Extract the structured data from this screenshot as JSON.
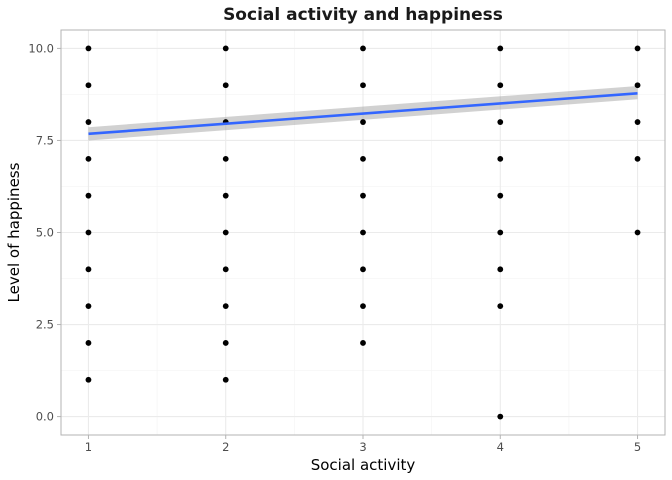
{
  "chart_data": {
    "type": "scatter",
    "title": "Social activity and happiness",
    "xlabel": "Social activity",
    "ylabel": "Level of happiness",
    "xlim": [
      0.8,
      5.2
    ],
    "ylim": [
      -0.5,
      10.5
    ],
    "x_ticks": [
      1,
      2,
      3,
      4,
      5
    ],
    "y_ticks": [
      0,
      2.5,
      5,
      7.5,
      10
    ],
    "y_tick_labels": [
      "0.0",
      "2.5",
      "5.0",
      "7.5",
      "10.0"
    ],
    "grid": true,
    "points": [
      {
        "x": 1,
        "y": 1
      },
      {
        "x": 1,
        "y": 2
      },
      {
        "x": 1,
        "y": 3
      },
      {
        "x": 1,
        "y": 4
      },
      {
        "x": 1,
        "y": 5
      },
      {
        "x": 1,
        "y": 6
      },
      {
        "x": 1,
        "y": 7
      },
      {
        "x": 1,
        "y": 8
      },
      {
        "x": 1,
        "y": 9
      },
      {
        "x": 1,
        "y": 10
      },
      {
        "x": 2,
        "y": 1
      },
      {
        "x": 2,
        "y": 2
      },
      {
        "x": 2,
        "y": 3
      },
      {
        "x": 2,
        "y": 4
      },
      {
        "x": 2,
        "y": 5
      },
      {
        "x": 2,
        "y": 6
      },
      {
        "x": 2,
        "y": 7
      },
      {
        "x": 2,
        "y": 8
      },
      {
        "x": 2,
        "y": 9
      },
      {
        "x": 2,
        "y": 10
      },
      {
        "x": 3,
        "y": 2
      },
      {
        "x": 3,
        "y": 3
      },
      {
        "x": 3,
        "y": 4
      },
      {
        "x": 3,
        "y": 5
      },
      {
        "x": 3,
        "y": 6
      },
      {
        "x": 3,
        "y": 7
      },
      {
        "x": 3,
        "y": 8
      },
      {
        "x": 3,
        "y": 9
      },
      {
        "x": 3,
        "y": 10
      },
      {
        "x": 4,
        "y": 0
      },
      {
        "x": 4,
        "y": 3
      },
      {
        "x": 4,
        "y": 4
      },
      {
        "x": 4,
        "y": 5
      },
      {
        "x": 4,
        "y": 6
      },
      {
        "x": 4,
        "y": 7
      },
      {
        "x": 4,
        "y": 8
      },
      {
        "x": 4,
        "y": 9
      },
      {
        "x": 4,
        "y": 10
      },
      {
        "x": 5,
        "y": 5
      },
      {
        "x": 5,
        "y": 7
      },
      {
        "x": 5,
        "y": 8
      },
      {
        "x": 5,
        "y": 9
      },
      {
        "x": 5,
        "y": 10
      }
    ],
    "trend_line": {
      "x": [
        1,
        5
      ],
      "y": [
        7.68,
        8.78
      ],
      "ci_lower": [
        7.5,
        8.62
      ],
      "ci_upper": [
        7.86,
        8.98
      ]
    },
    "colors": {
      "points": "#000000",
      "trend_line": "#3366ff",
      "confidence_band": "#999999"
    }
  }
}
